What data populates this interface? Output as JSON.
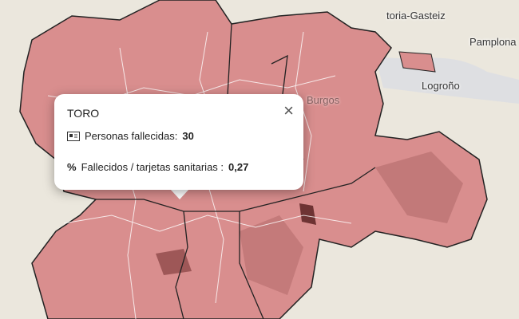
{
  "map_labels": [
    "toria-Gasteiz",
    "Pamplona",
    "Logroño",
    "Burgos"
  ],
  "popup": {
    "title": "TORO",
    "rows": [
      {
        "label": "Personas fallecidas:",
        "value": 30
      },
      {
        "icon": "%",
        "label": "Fallecidos / tarjetas sanitarias :",
        "value": "0,27"
      }
    ]
  }
}
